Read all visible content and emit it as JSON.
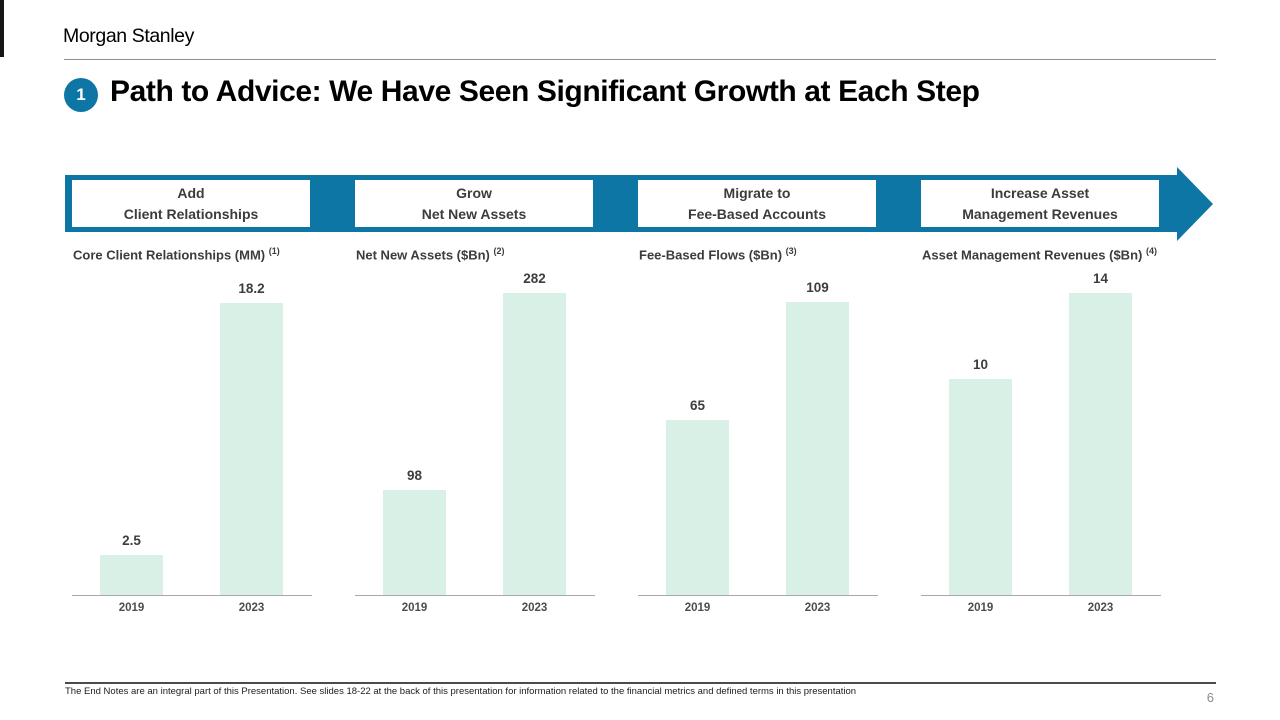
{
  "brand": {
    "logo_text": "Morgan Stanley"
  },
  "header": {
    "step_number": "1",
    "title": "Path to Advice: We Have Seen Significant Growth at Each Step"
  },
  "banner": {
    "steps": [
      {
        "line1": "Add",
        "line2": "Client Relationships"
      },
      {
        "line1": "Grow",
        "line2": "Net New Assets"
      },
      {
        "line1": "Migrate to",
        "line2": "Fee-Based Accounts"
      },
      {
        "line1": "Increase Asset",
        "line2": "Management Revenues"
      }
    ]
  },
  "chart_data": [
    {
      "type": "bar",
      "title": "Core Client Relationships (MM)",
      "footnote_marker": "(1)",
      "categories": [
        "2019",
        "2023"
      ],
      "values": [
        2.5,
        18.2
      ],
      "ylim": [
        0,
        18.2
      ],
      "grid": false,
      "legend": "none"
    },
    {
      "type": "bar",
      "title": "Net New Assets ($Bn)",
      "footnote_marker": "(2)",
      "categories": [
        "2019",
        "2023"
      ],
      "values": [
        98,
        282
      ],
      "ylim": [
        0,
        282
      ],
      "grid": false,
      "legend": "none"
    },
    {
      "type": "bar",
      "title": "Fee-Based Flows ($Bn)",
      "footnote_marker": "(3)",
      "categories": [
        "2019",
        "2023"
      ],
      "values": [
        65,
        109
      ],
      "ylim": [
        0,
        109
      ],
      "grid": false,
      "legend": "none"
    },
    {
      "type": "bar",
      "title": "Asset Management Revenues ($Bn)",
      "footnote_marker": "(4)",
      "categories": [
        "2019",
        "2023"
      ],
      "values": [
        10,
        14
      ],
      "ylim": [
        0,
        14
      ],
      "grid": false,
      "legend": "none"
    }
  ],
  "colors": {
    "accent_teal": "#0e76a4",
    "bar_fill": "#d8f0e5",
    "axis_line": "#a8a8a8"
  },
  "footer": {
    "note": "The End Notes are an integral part of this Presentation. See slides 18-22 at the back of this presentation for information related to the financial metrics and defined terms in this presentation",
    "page_number": "6"
  }
}
